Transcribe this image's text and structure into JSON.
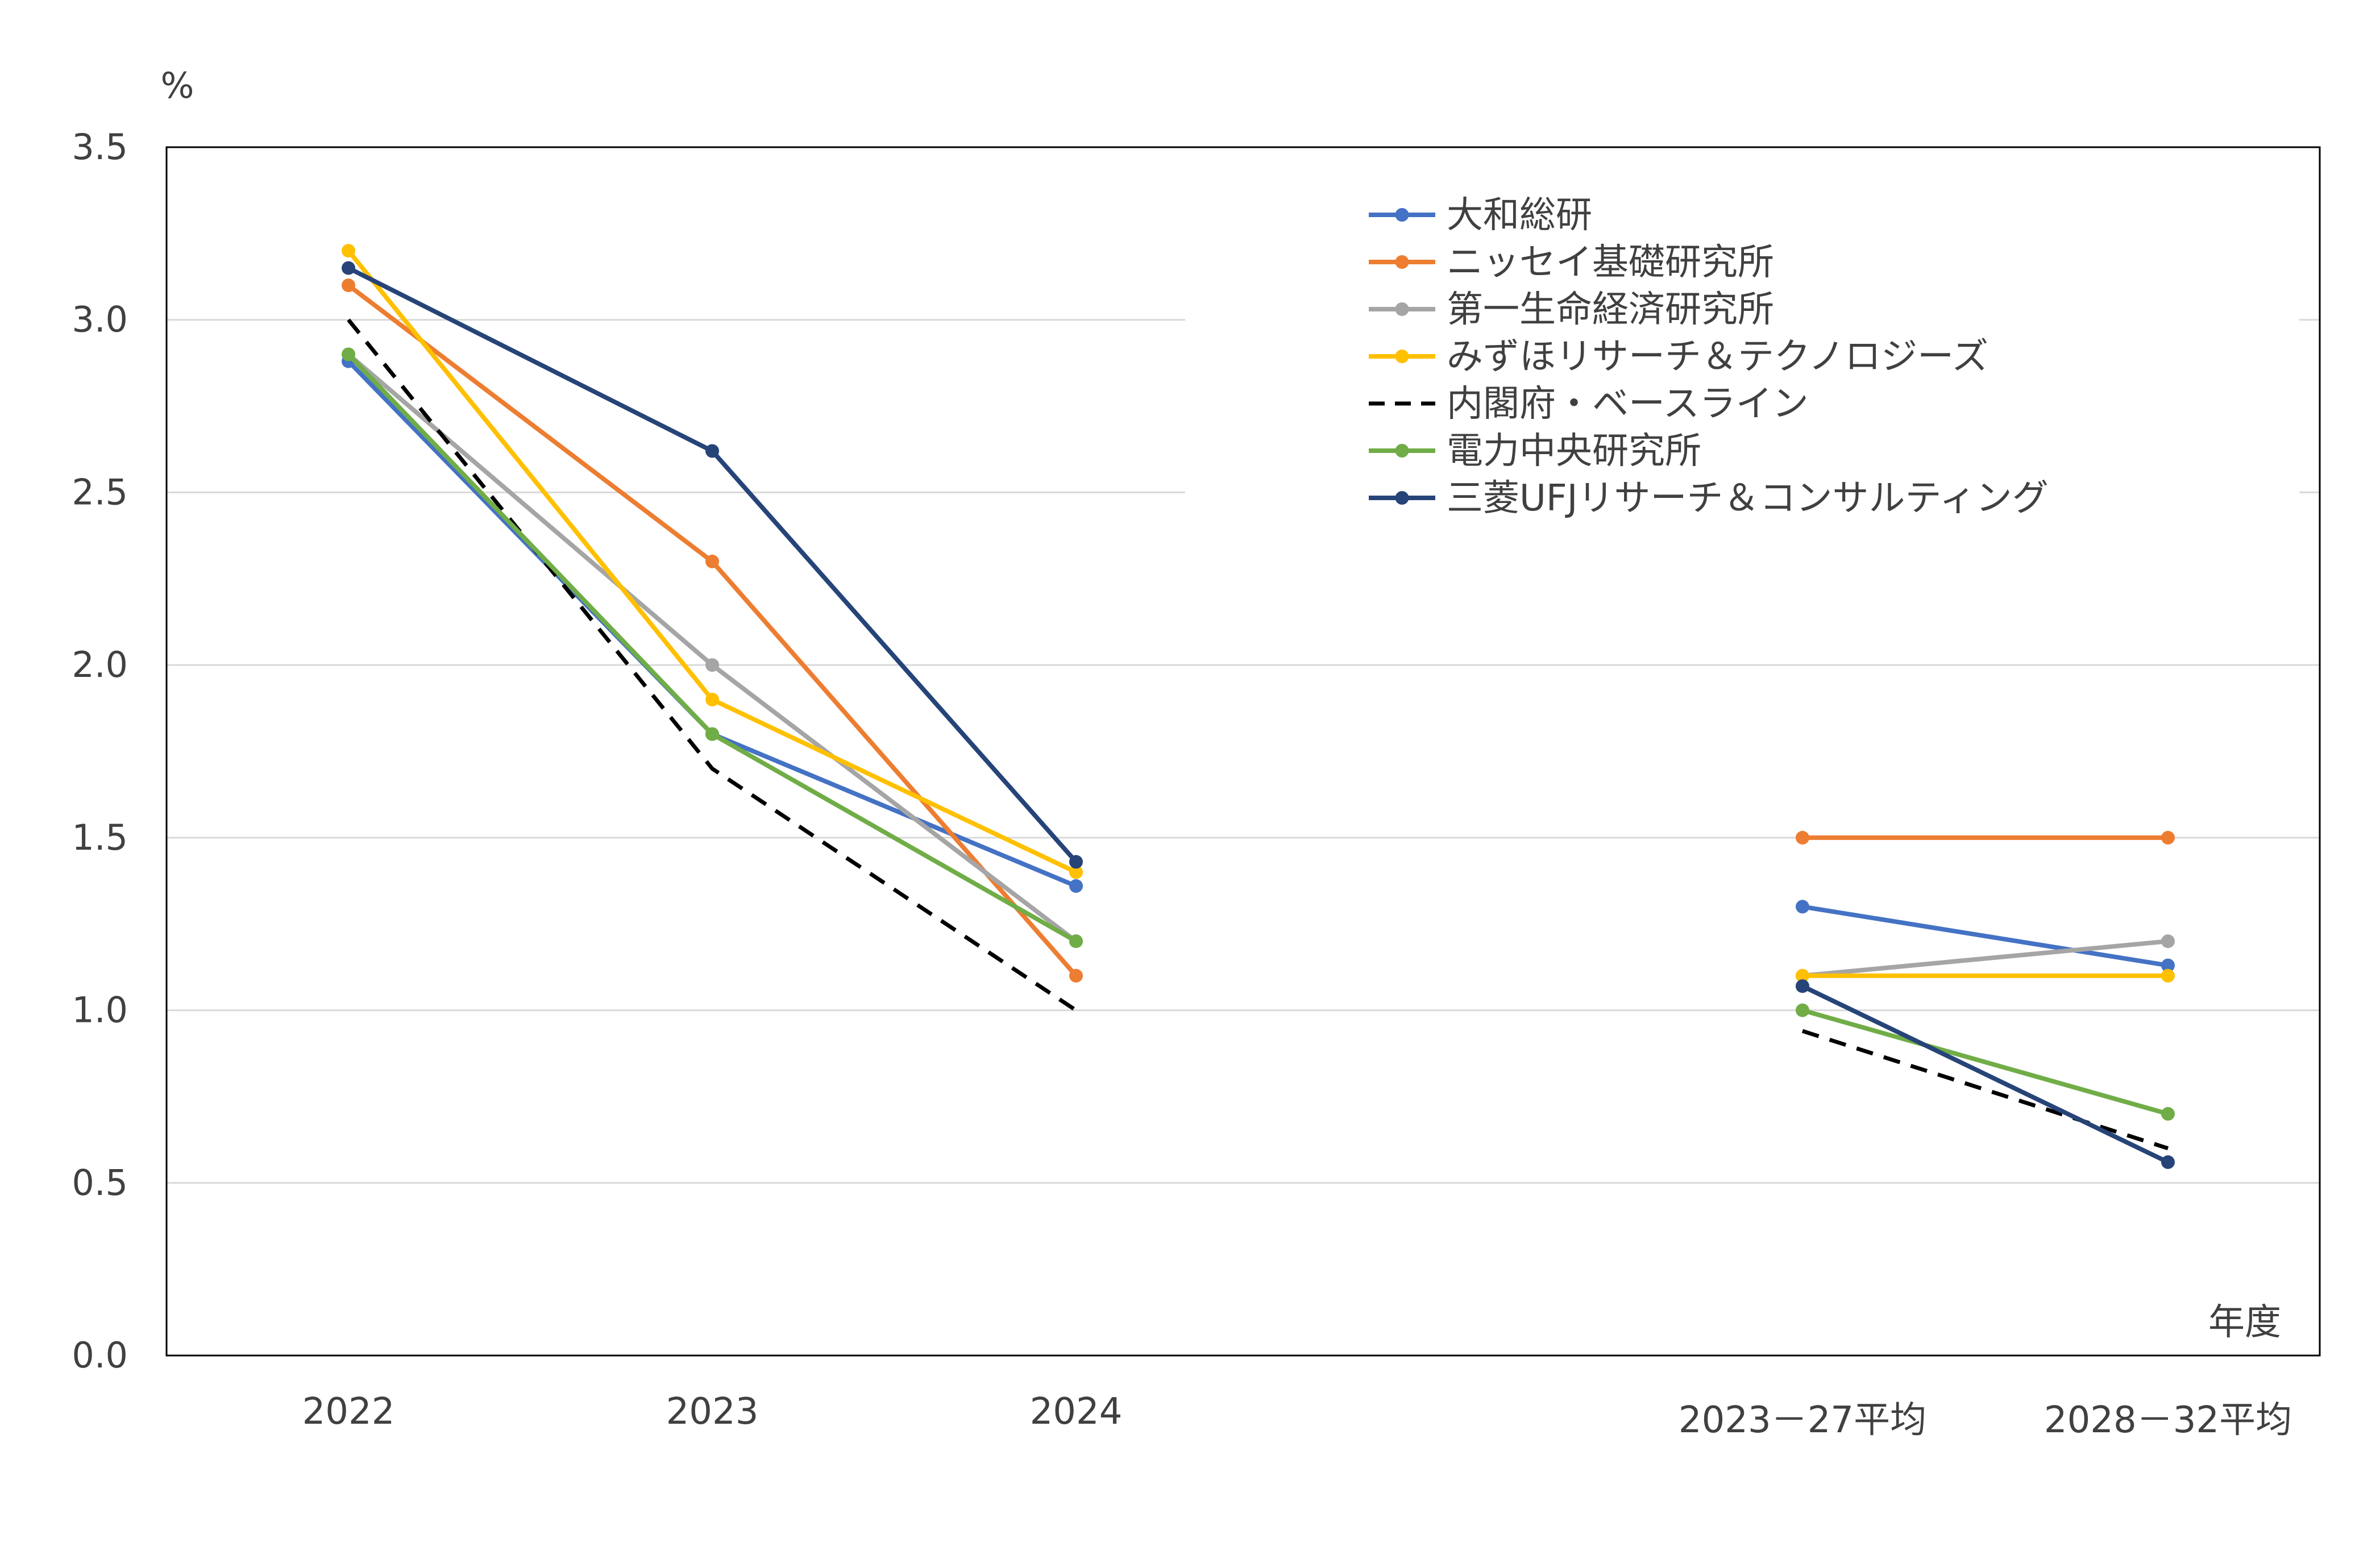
{
  "chart_data": {
    "type": "line",
    "title": "",
    "ylabel": "%",
    "xlabel": "年度",
    "ylim": [
      0,
      3.5
    ],
    "yticks": [
      "0.0",
      "0.5",
      "1.0",
      "1.5",
      "2.0",
      "2.5",
      "3.0",
      "3.5"
    ],
    "categories": [
      "2022",
      "2023",
      "2024",
      "2023－27平均",
      "2028－32平均"
    ],
    "grid": true,
    "legend_position": "top-right",
    "series": [
      {
        "name": "大和総研",
        "color": "#4472C4",
        "dash": false,
        "values": [
          2.88,
          1.8,
          1.36,
          1.3,
          1.13
        ]
      },
      {
        "name": "ニッセイ基礎研究所",
        "color": "#ED7D31",
        "dash": false,
        "values": [
          3.1,
          2.3,
          1.1,
          1.5,
          1.5
        ]
      },
      {
        "name": "第一生命経済研究所",
        "color": "#A5A5A5",
        "dash": false,
        "values": [
          2.9,
          2.0,
          1.2,
          1.1,
          1.2
        ]
      },
      {
        "name": "みずほリサーチ＆テクノロジーズ",
        "color": "#FFC000",
        "dash": false,
        "values": [
          3.2,
          1.9,
          1.4,
          1.1,
          1.1
        ]
      },
      {
        "name": "内閣府・ベースライン",
        "color": "#000000",
        "dash": true,
        "values": [
          3.0,
          1.7,
          1.0,
          0.94,
          0.6
        ]
      },
      {
        "name": "電力中央研究所",
        "color": "#70AD47",
        "dash": false,
        "values": [
          2.9,
          1.8,
          1.2,
          1.0,
          0.7
        ]
      },
      {
        "name": "三菱UFJリサーチ＆コンサルティング",
        "color": "#264478",
        "dash": false,
        "values": [
          3.15,
          2.62,
          1.43,
          1.07,
          0.56
        ]
      }
    ]
  }
}
